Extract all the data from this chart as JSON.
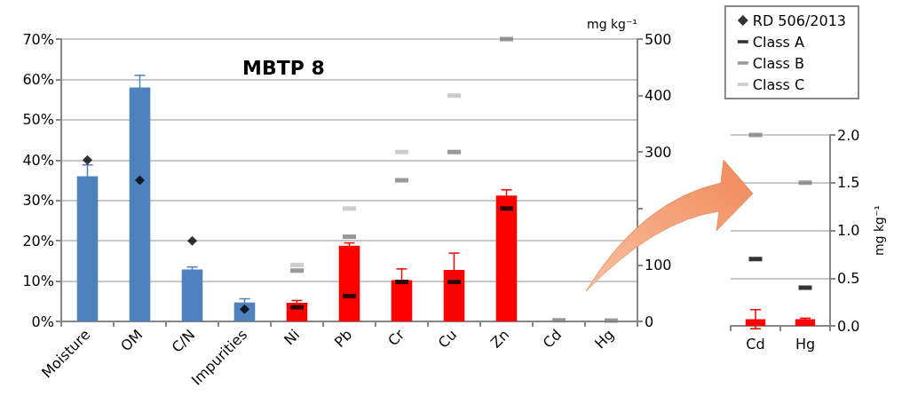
{
  "chart_data": [
    {
      "type": "bar",
      "title": "MBTP 8",
      "y2label": "mg kg⁻¹",
      "categories": [
        "Moisture",
        "OM",
        "C/N",
        "Impurities",
        "Ni",
        "Pb",
        "Cr",
        "Cu",
        "Zn",
        "Cd",
        "Hg"
      ],
      "ylim": [
        0,
        70
      ],
      "yticks": [
        {
          "value": 0,
          "label": "0%"
        },
        {
          "value": 10,
          "label": "10%"
        },
        {
          "value": 20,
          "label": "20%"
        },
        {
          "value": 30,
          "label": "30%"
        },
        {
          "value": 40,
          "label": "40%"
        },
        {
          "value": 50,
          "label": "50%"
        },
        {
          "value": 60,
          "label": "60%"
        },
        {
          "value": 70,
          "label": "70%"
        }
      ],
      "y2lim": [
        0,
        500
      ],
      "y2ticks": [
        0,
        100,
        {
          "value": 200,
          "label": null
        },
        300,
        400,
        500
      ],
      "grid": "y",
      "legend": "top right",
      "series": [
        {
          "type": "bar",
          "color": "#4f81bd",
          "values": [
            36,
            58,
            12.9,
            4.7,
            null,
            null,
            null,
            null,
            null,
            null,
            null
          ],
          "errors": [
            2.8,
            3,
            0.6,
            0.9,
            null,
            null,
            null,
            null,
            null,
            null,
            null
          ]
        },
        {
          "type": "bar",
          "axis": "y2",
          "color": "#ff0000",
          "values": [
            null,
            null,
            null,
            null,
            33,
            134,
            73,
            91,
            223,
            null,
            null
          ],
          "errors": [
            null,
            null,
            null,
            null,
            4,
            5,
            20,
            30,
            10,
            null,
            null
          ]
        },
        {
          "type": "scatter",
          "name": "RD 506/2013",
          "color": "#000000",
          "marker": "diamond",
          "values": [
            40,
            35,
            20,
            3,
            null,
            null,
            null,
            null,
            null,
            null,
            null
          ]
        },
        {
          "type": "scatter",
          "name": "Class A",
          "axis": "y2",
          "color": "#000000",
          "marker": "square",
          "values": [
            null,
            null,
            null,
            null,
            25,
            45,
            70,
            70,
            200,
            null,
            null
          ]
        },
        {
          "type": "scatter",
          "name": "Class B",
          "axis": "y2",
          "color": "#808080",
          "marker": "square",
          "values": [
            null,
            null,
            null,
            null,
            90,
            150,
            250,
            300,
            500,
            2,
            1.5
          ]
        },
        {
          "type": "scatter",
          "name": "Class C",
          "axis": "y2",
          "color": "#c0c0c0",
          "marker": "square",
          "values": [
            null,
            null,
            null,
            null,
            100,
            200,
            300,
            400,
            null,
            null,
            null
          ]
        }
      ]
    },
    {
      "type": "bar",
      "y2label": "mg kg⁻¹",
      "categories": [
        "Cd",
        "Hg"
      ],
      "y2lim": [
        0,
        2
      ],
      "y2ticks": [
        {
          "value": 0,
          "label": "0.0"
        },
        {
          "value": 0.5,
          "label": "0.5"
        },
        {
          "value": 1,
          "label": "1.0"
        },
        {
          "value": 1.5,
          "label": "1.5"
        },
        {
          "value": 2,
          "label": "2.0"
        }
      ],
      "grid": "y",
      "series": [
        {
          "type": "bar",
          "axis": "y2",
          "color": "#ff0000",
          "values": [
            0.07,
            0.07
          ],
          "errors": [
            0.1,
            0.01
          ]
        },
        {
          "type": "scatter",
          "axis": "y2",
          "color": "#000000",
          "marker": "square",
          "values": [
            0.7,
            0.4
          ]
        },
        {
          "type": "scatter",
          "axis": "y2",
          "color": "#808080",
          "marker": "square",
          "values": [
            2,
            1.5
          ]
        }
      ]
    }
  ]
}
